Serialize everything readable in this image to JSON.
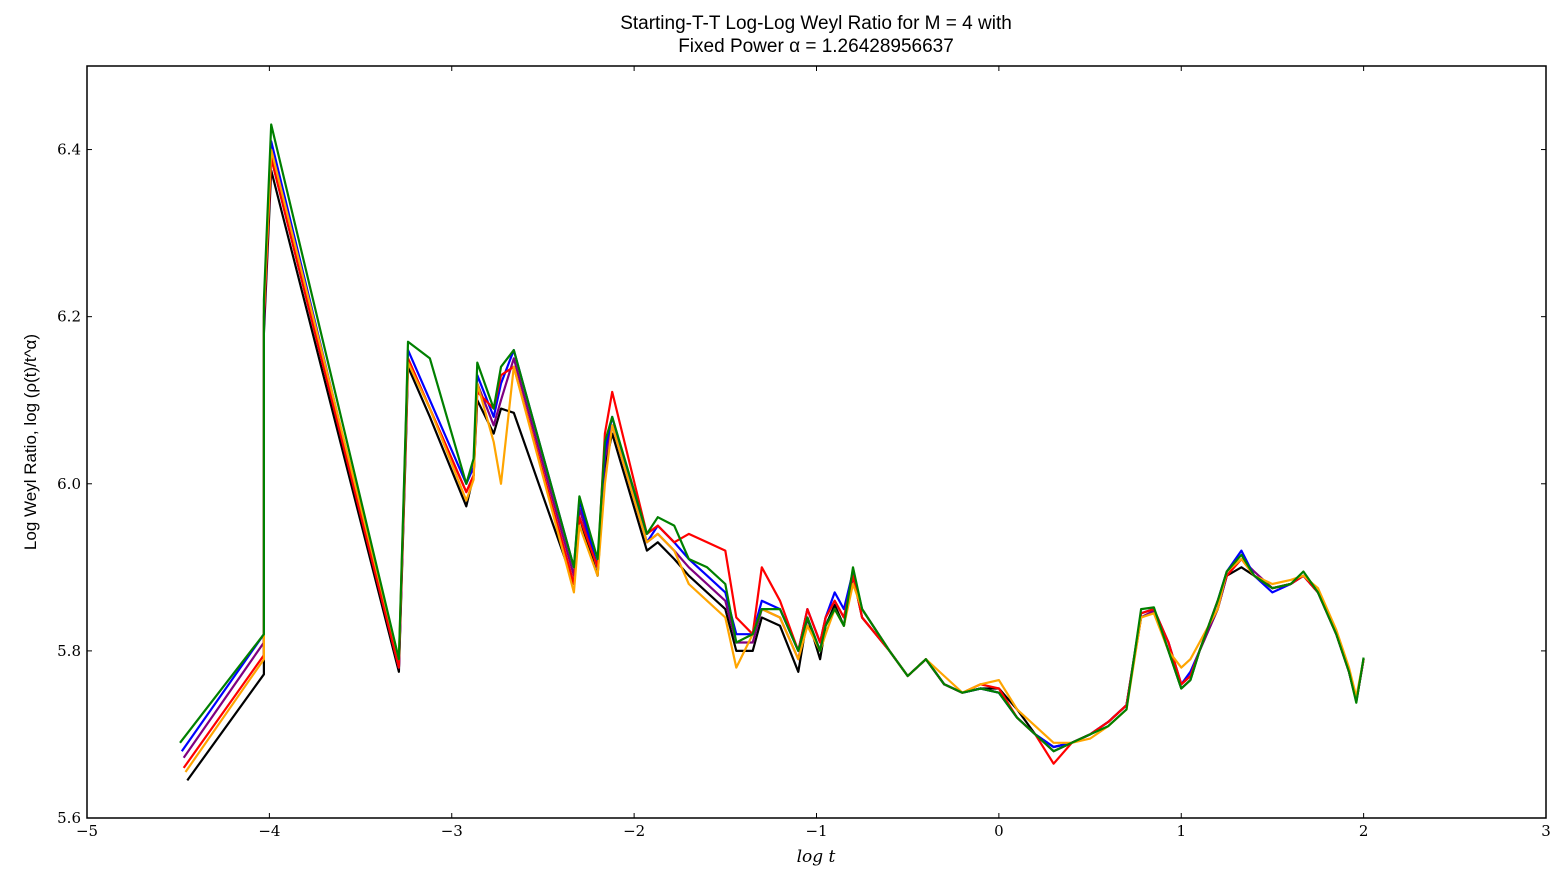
{
  "chart_data": {
    "type": "line",
    "title_line1": "Starting-T-T Log-Log Weyl Ratio for M = 4 with",
    "title_line2": "Fixed Power α = 1.26428956637",
    "xlabel": "log t",
    "ylabel": "Log Weyl Ratio, log (ρ(t)/t^α)",
    "xlim": [
      -5,
      3
    ],
    "ylim": [
      5.6,
      6.5
    ],
    "xticks": [
      -5,
      -4,
      -3,
      -2,
      -1,
      0,
      1,
      2,
      3
    ],
    "xtick_labels": [
      "−5",
      "−4",
      "−3",
      "−2",
      "−1",
      "0",
      "1",
      "2",
      "3"
    ],
    "yticks": [
      5.6,
      5.8,
      6.0,
      6.2,
      6.4
    ],
    "ytick_labels": [
      "5.6",
      "5.8",
      "6.0",
      "6.2",
      "6.4"
    ],
    "grid": false,
    "legend": "none",
    "colors": [
      "#000000",
      "#800080",
      "#0000ff",
      "#ff0000",
      "#ffa500",
      "#008000"
    ],
    "series": [
      {
        "color": "#000000",
        "x": [
          -4.45,
          -4.03,
          -4.03,
          -3.99,
          -3.29,
          -3.25,
          -3.24,
          -3.12,
          -2.92,
          -2.88,
          -2.86,
          -2.77,
          -2.73,
          -2.66,
          -2.33,
          -2.3,
          -2.2,
          -2.16,
          -2.12,
          -1.93,
          -1.87,
          -1.78,
          -1.7,
          -1.6,
          -1.5,
          -1.44,
          -1.35,
          -1.3,
          -1.2,
          -1.1,
          -1.05,
          -0.98,
          -0.95,
          -0.9,
          -0.85,
          -0.8,
          -0.75,
          -0.6,
          -0.5,
          -0.4,
          -0.3,
          -0.2,
          -0.1,
          0.0,
          0.1,
          0.2,
          0.3,
          0.4,
          0.5,
          0.6,
          0.7,
          0.78,
          0.85,
          0.93,
          1.0,
          1.05,
          1.1,
          1.2,
          1.25,
          1.33,
          1.4,
          1.5,
          1.6,
          1.67,
          1.75,
          1.85,
          1.92,
          1.96,
          2.0
        ],
        "y": [
          5.645,
          5.772,
          6.18,
          6.375,
          5.775,
          6.06,
          6.14,
          6.08,
          5.973,
          6.01,
          6.1,
          6.06,
          6.09,
          6.085,
          5.88,
          5.96,
          5.89,
          6.02,
          6.06,
          5.92,
          5.93,
          5.91,
          5.89,
          5.87,
          5.85,
          5.8,
          5.8,
          5.84,
          5.83,
          5.775,
          5.84,
          5.79,
          5.83,
          5.855,
          5.83,
          5.89,
          5.84,
          5.8,
          5.77,
          5.79,
          5.76,
          5.75,
          5.755,
          5.755,
          5.73,
          5.7,
          5.685,
          5.69,
          5.7,
          5.715,
          5.735,
          5.84,
          5.848,
          5.8,
          5.755,
          5.765,
          5.8,
          5.85,
          5.89,
          5.9,
          5.89,
          5.875,
          5.88,
          5.89,
          5.87,
          5.82,
          5.775,
          5.74,
          5.79
        ]
      },
      {
        "color": "#800080",
        "x": [
          -4.47,
          -4.03,
          -4.03,
          -3.99,
          -3.29,
          -3.25,
          -3.24,
          -3.12,
          -2.92,
          -2.88,
          -2.86,
          -2.77,
          -2.73,
          -2.66,
          -2.33,
          -2.3,
          -2.2,
          -2.16,
          -2.12,
          -1.93,
          -1.87,
          -1.78,
          -1.7,
          -1.6,
          -1.5,
          -1.44,
          -1.35,
          -1.3,
          -1.2,
          -1.1,
          -1.05,
          -0.98,
          -0.95,
          -0.9,
          -0.85,
          -0.8,
          -0.75,
          -0.6,
          -0.5,
          -0.4,
          -0.3,
          -0.2,
          -0.1,
          0.0,
          0.1,
          0.2,
          0.3,
          0.4,
          0.5,
          0.6,
          0.7,
          0.78,
          0.85,
          0.93,
          1.0,
          1.05,
          1.1,
          1.2,
          1.25,
          1.33,
          1.4,
          1.5,
          1.6,
          1.67,
          1.75,
          1.85,
          1.92,
          1.96,
          2.0
        ],
        "y": [
          5.672,
          5.81,
          6.19,
          6.39,
          5.78,
          6.07,
          6.15,
          6.09,
          5.99,
          6.01,
          6.12,
          6.07,
          6.1,
          6.15,
          5.89,
          5.97,
          5.9,
          6.03,
          6.07,
          5.93,
          5.94,
          5.92,
          5.9,
          5.88,
          5.86,
          5.81,
          5.81,
          5.85,
          5.84,
          5.79,
          5.84,
          5.8,
          5.84,
          5.86,
          5.84,
          5.89,
          5.85,
          5.8,
          5.77,
          5.79,
          5.76,
          5.75,
          5.755,
          5.75,
          5.72,
          5.7,
          5.68,
          5.69,
          5.7,
          5.715,
          5.735,
          5.84,
          5.848,
          5.8,
          5.76,
          5.77,
          5.8,
          5.85,
          5.89,
          5.91,
          5.895,
          5.875,
          5.88,
          5.89,
          5.87,
          5.82,
          5.775,
          5.74,
          5.79
        ]
      },
      {
        "color": "#0000ff",
        "x": [
          -4.48,
          -4.03,
          -4.03,
          -3.99,
          -3.29,
          -3.25,
          -3.24,
          -3.12,
          -2.92,
          -2.88,
          -2.86,
          -2.77,
          -2.73,
          -2.66,
          -2.33,
          -2.3,
          -2.2,
          -2.16,
          -2.12,
          -1.93,
          -1.87,
          -1.78,
          -1.7,
          -1.6,
          -1.5,
          -1.44,
          -1.35,
          -1.3,
          -1.2,
          -1.1,
          -1.05,
          -0.98,
          -0.95,
          -0.9,
          -0.85,
          -0.8,
          -0.75,
          -0.6,
          -0.5,
          -0.4,
          -0.3,
          -0.2,
          -0.1,
          0.0,
          0.1,
          0.2,
          0.3,
          0.4,
          0.5,
          0.6,
          0.7,
          0.78,
          0.85,
          0.93,
          1.0,
          1.05,
          1.1,
          1.2,
          1.25,
          1.33,
          1.4,
          1.5,
          1.6,
          1.67,
          1.75,
          1.85,
          1.92,
          1.96,
          2.0
        ],
        "y": [
          5.68,
          5.82,
          6.2,
          6.41,
          5.78,
          6.08,
          6.16,
          6.1,
          6.0,
          6.02,
          6.13,
          6.08,
          6.12,
          6.16,
          5.9,
          5.98,
          5.9,
          6.04,
          6.08,
          5.93,
          5.95,
          5.93,
          5.91,
          5.89,
          5.87,
          5.82,
          5.82,
          5.86,
          5.85,
          5.8,
          5.85,
          5.81,
          5.84,
          5.87,
          5.85,
          5.895,
          5.85,
          5.8,
          5.77,
          5.79,
          5.76,
          5.75,
          5.755,
          5.75,
          5.72,
          5.7,
          5.685,
          5.69,
          5.7,
          5.715,
          5.735,
          5.845,
          5.85,
          5.81,
          5.76,
          5.775,
          5.8,
          5.86,
          5.895,
          5.92,
          5.89,
          5.87,
          5.88,
          5.89,
          5.87,
          5.82,
          5.775,
          5.74,
          5.79
        ]
      },
      {
        "color": "#ff0000",
        "x": [
          -4.47,
          -4.03,
          -4.03,
          -3.99,
          -3.29,
          -3.25,
          -3.24,
          -3.12,
          -2.92,
          -2.88,
          -2.86,
          -2.77,
          -2.73,
          -2.66,
          -2.33,
          -2.3,
          -2.2,
          -2.16,
          -2.12,
          -1.93,
          -1.87,
          -1.78,
          -1.7,
          -1.6,
          -1.5,
          -1.44,
          -1.35,
          -1.3,
          -1.2,
          -1.1,
          -1.05,
          -0.98,
          -0.95,
          -0.9,
          -0.85,
          -0.8,
          -0.75,
          -0.6,
          -0.5,
          -0.4,
          -0.3,
          -0.2,
          -0.1,
          0.0,
          0.1,
          0.2,
          0.3,
          0.4,
          0.5,
          0.6,
          0.7,
          0.78,
          0.85,
          0.93,
          1.0,
          1.05,
          1.1,
          1.2,
          1.25,
          1.33,
          1.4,
          1.5,
          1.6,
          1.67,
          1.75,
          1.85,
          1.92,
          1.96,
          2.0
        ],
        "y": [
          5.66,
          5.795,
          6.2,
          6.39,
          5.78,
          6.07,
          6.15,
          6.09,
          5.99,
          6.01,
          6.11,
          6.09,
          6.13,
          6.14,
          5.88,
          5.96,
          5.9,
          6.06,
          6.11,
          5.94,
          5.95,
          5.93,
          5.94,
          5.93,
          5.92,
          5.84,
          5.82,
          5.9,
          5.86,
          5.8,
          5.85,
          5.81,
          5.84,
          5.86,
          5.84,
          5.89,
          5.84,
          5.8,
          5.77,
          5.79,
          5.76,
          5.75,
          5.76,
          5.755,
          5.72,
          5.7,
          5.665,
          5.69,
          5.7,
          5.715,
          5.735,
          5.845,
          5.85,
          5.81,
          5.76,
          5.77,
          5.8,
          5.86,
          5.89,
          5.91,
          5.89,
          5.875,
          5.88,
          5.89,
          5.87,
          5.82,
          5.775,
          5.74,
          5.79
        ]
      },
      {
        "color": "#ffa500",
        "x": [
          -4.46,
          -4.03,
          -4.03,
          -3.99,
          -3.29,
          -3.25,
          -3.24,
          -3.12,
          -2.92,
          -2.88,
          -2.86,
          -2.77,
          -2.73,
          -2.66,
          -2.33,
          -2.3,
          -2.2,
          -2.16,
          -2.12,
          -1.93,
          -1.87,
          -1.78,
          -1.7,
          -1.6,
          -1.5,
          -1.44,
          -1.35,
          -1.3,
          -1.2,
          -1.1,
          -1.05,
          -0.98,
          -0.95,
          -0.9,
          -0.85,
          -0.8,
          -0.75,
          -0.6,
          -0.5,
          -0.4,
          -0.3,
          -0.2,
          -0.1,
          0.0,
          0.1,
          0.2,
          0.3,
          0.4,
          0.5,
          0.6,
          0.7,
          0.78,
          0.85,
          0.93,
          1.0,
          1.05,
          1.1,
          1.2,
          1.25,
          1.33,
          1.4,
          1.5,
          1.6,
          1.67,
          1.75,
          1.85,
          1.92,
          1.96,
          2.0
        ],
        "y": [
          5.655,
          5.79,
          6.21,
          6.4,
          5.79,
          6.08,
          6.145,
          6.09,
          5.98,
          6.005,
          6.12,
          6.05,
          6.0,
          6.14,
          5.87,
          5.95,
          5.89,
          6.0,
          6.07,
          5.93,
          5.94,
          5.92,
          5.88,
          5.86,
          5.84,
          5.78,
          5.82,
          5.85,
          5.84,
          5.79,
          5.83,
          5.8,
          5.82,
          5.85,
          5.83,
          5.88,
          5.85,
          5.8,
          5.77,
          5.79,
          5.77,
          5.75,
          5.76,
          5.765,
          5.73,
          5.71,
          5.69,
          5.69,
          5.695,
          5.71,
          5.73,
          5.84,
          5.845,
          5.8,
          5.78,
          5.79,
          5.81,
          5.85,
          5.895,
          5.91,
          5.89,
          5.88,
          5.885,
          5.89,
          5.875,
          5.825,
          5.78,
          5.745,
          5.79
        ]
      },
      {
        "color": "#008000",
        "x": [
          -4.49,
          -4.03,
          -4.03,
          -3.99,
          -3.29,
          -3.25,
          -3.24,
          -3.12,
          -2.92,
          -2.88,
          -2.86,
          -2.77,
          -2.73,
          -2.66,
          -2.33,
          -2.3,
          -2.2,
          -2.16,
          -2.12,
          -1.93,
          -1.87,
          -1.78,
          -1.7,
          -1.6,
          -1.5,
          -1.44,
          -1.35,
          -1.3,
          -1.2,
          -1.1,
          -1.05,
          -0.98,
          -0.95,
          -0.9,
          -0.85,
          -0.8,
          -0.75,
          -0.6,
          -0.5,
          -0.4,
          -0.3,
          -0.2,
          -0.1,
          0.0,
          0.1,
          0.2,
          0.3,
          0.4,
          0.5,
          0.6,
          0.7,
          0.78,
          0.85,
          0.93,
          1.0,
          1.05,
          1.1,
          1.2,
          1.25,
          1.33,
          1.4,
          1.5,
          1.6,
          1.67,
          1.75,
          1.85,
          1.92,
          1.96,
          2.0
        ],
        "y": [
          5.69,
          5.82,
          6.22,
          6.43,
          5.79,
          6.09,
          6.17,
          6.15,
          6.0,
          6.03,
          6.145,
          6.09,
          6.14,
          6.16,
          5.9,
          5.985,
          5.91,
          6.05,
          6.08,
          5.94,
          5.96,
          5.95,
          5.91,
          5.9,
          5.88,
          5.81,
          5.82,
          5.85,
          5.85,
          5.8,
          5.84,
          5.8,
          5.83,
          5.85,
          5.83,
          5.9,
          5.85,
          5.8,
          5.77,
          5.79,
          5.76,
          5.75,
          5.755,
          5.75,
          5.72,
          5.7,
          5.68,
          5.69,
          5.7,
          5.71,
          5.73,
          5.85,
          5.852,
          5.8,
          5.755,
          5.765,
          5.8,
          5.86,
          5.895,
          5.915,
          5.89,
          5.875,
          5.88,
          5.895,
          5.87,
          5.82,
          5.775,
          5.738,
          5.792
        ]
      }
    ]
  }
}
